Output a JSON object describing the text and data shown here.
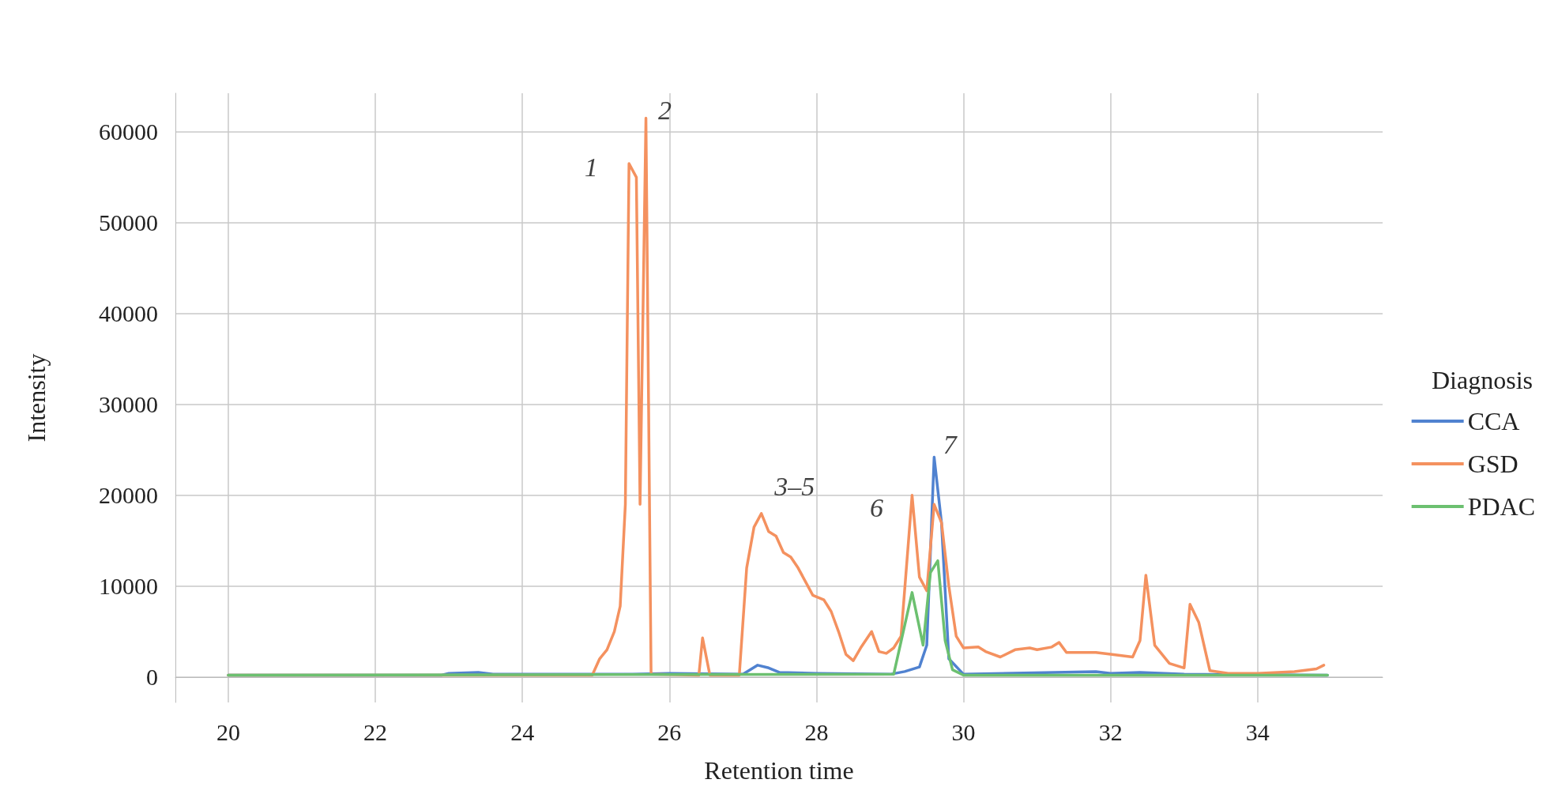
{
  "chart_data": {
    "type": "line",
    "xlabel": "Retention time",
    "ylabel": "Intensity",
    "legend_title": "Diagnosis",
    "xlim": [
      19.28,
      35.7
    ],
    "xticks": [
      20,
      22,
      24,
      26,
      28,
      30,
      32,
      34
    ],
    "ylim": [
      -2800,
      64250
    ],
    "yticks": [
      0,
      10000,
      20000,
      30000,
      40000,
      50000,
      60000
    ],
    "grid": true,
    "legend": "right",
    "marker": "none",
    "line_style": "solid",
    "annotations": [
      {
        "text": "1",
        "x": 25.45,
        "y": 56500
      },
      {
        "text": "2",
        "x": 25.68,
        "y": 61500
      },
      {
        "text": "3–5",
        "x": 27.25,
        "y": 18000
      },
      {
        "text": "6",
        "x": 29.3,
        "y": 20000
      },
      {
        "text": "7",
        "x": 29.6,
        "y": 24200
      }
    ],
    "series": [
      {
        "name": "CCA",
        "color": "#5082d0",
        "x": [
          20,
          22.9,
          23.0,
          23.4,
          23.6,
          25.5,
          26.0,
          27.0,
          27.2,
          27.35,
          27.5,
          28.0,
          29.0,
          29.2,
          29.4,
          29.5,
          29.6,
          29.7,
          29.8,
          30.0,
          31.8,
          32.0,
          32.4,
          33.0,
          34.95
        ],
        "values": [
          200,
          200,
          400,
          500,
          300,
          300,
          400,
          300,
          1300,
          1000,
          500,
          400,
          300,
          600,
          1100,
          3500,
          24200,
          17000,
          2000,
          300,
          600,
          400,
          500,
          300,
          200
        ]
      },
      {
        "name": "GSD",
        "color": "#f4915f",
        "x": [
          20,
          24.95,
          25.05,
          25.15,
          25.25,
          25.33,
          25.4,
          25.45,
          25.55,
          25.6,
          25.68,
          25.75,
          26.4,
          26.45,
          26.55,
          26.95,
          27.05,
          27.15,
          27.25,
          27.35,
          27.45,
          27.55,
          27.65,
          27.75,
          27.85,
          27.95,
          28.1,
          28.2,
          28.3,
          28.4,
          28.5,
          28.6,
          28.75,
          28.85,
          28.95,
          29.05,
          29.15,
          29.3,
          29.4,
          29.5,
          29.6,
          29.7,
          29.8,
          29.9,
          30.0,
          30.2,
          30.3,
          30.5,
          30.7,
          30.9,
          31.0,
          31.2,
          31.3,
          31.4,
          31.6,
          31.8,
          32.0,
          32.3,
          32.4,
          32.48,
          32.6,
          32.8,
          33.0,
          33.08,
          33.2,
          33.35,
          33.6,
          34.0,
          34.5,
          34.8,
          34.9
        ],
        "values": [
          200,
          200,
          2000,
          3000,
          5000,
          7800,
          19000,
          56500,
          55000,
          19000,
          61500,
          300,
          200,
          4300,
          200,
          200,
          12000,
          16500,
          18000,
          16000,
          15500,
          13700,
          13200,
          12000,
          10500,
          9000,
          8500,
          7200,
          5000,
          2500,
          1800,
          3200,
          5000,
          2800,
          2600,
          3200,
          4500,
          20000,
          11000,
          9500,
          19000,
          17000,
          10000,
          4500,
          3200,
          3300,
          2800,
          2200,
          3000,
          3200,
          3000,
          3300,
          3800,
          2700,
          2700,
          2700,
          2500,
          2200,
          4000,
          11200,
          3500,
          1500,
          1000,
          8000,
          6000,
          700,
          400,
          400,
          600,
          900,
          1300
        ]
      },
      {
        "name": "PDAC",
        "color": "#6cc070",
        "x": [
          20,
          29.05,
          29.3,
          29.45,
          29.55,
          29.65,
          29.75,
          29.85,
          30.0,
          34.95
        ],
        "values": [
          200,
          300,
          9300,
          3500,
          11500,
          12800,
          4000,
          800,
          200,
          200
        ]
      }
    ]
  }
}
